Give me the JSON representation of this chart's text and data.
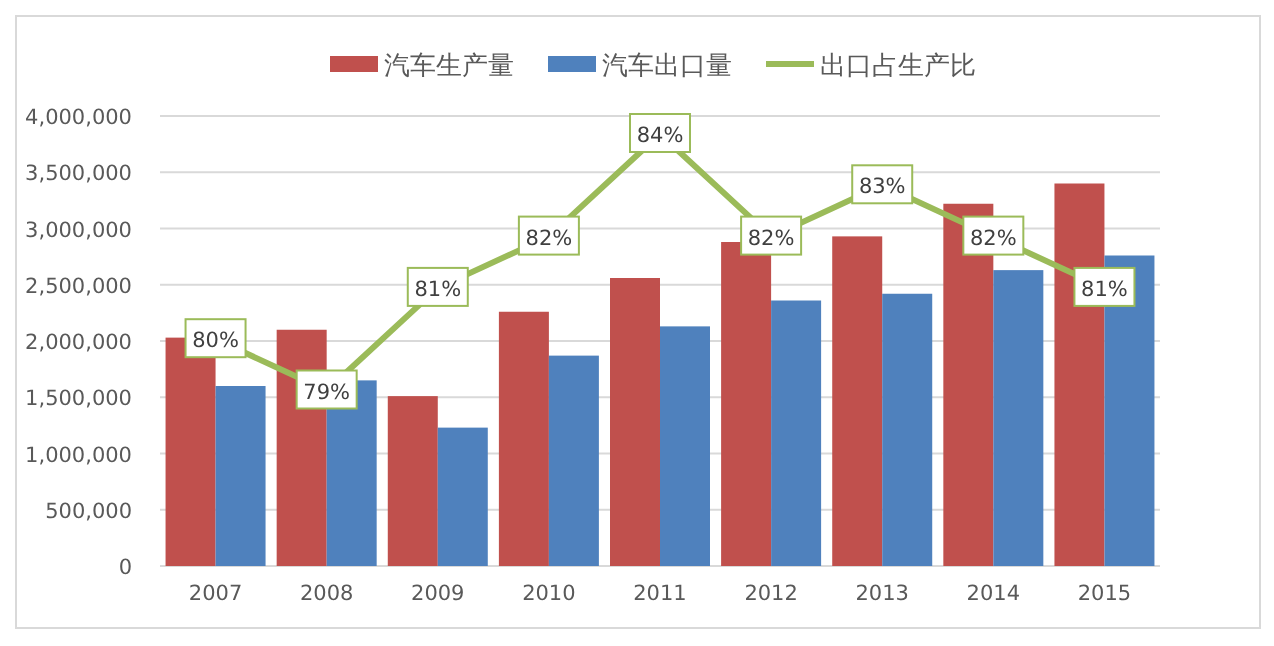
{
  "chart_data": {
    "type": "bar",
    "categories": [
      "2007",
      "2008",
      "2009",
      "2010",
      "2011",
      "2012",
      "2013",
      "2014",
      "2015"
    ],
    "series": [
      {
        "name": "汽车生产量",
        "color": "#c0504d",
        "values": [
          2030000,
          2100000,
          1510000,
          2260000,
          2560000,
          2880000,
          2930000,
          3220000,
          3400000
        ]
      },
      {
        "name": "汽车出口量",
        "color": "#4f81bd",
        "values": [
          1600000,
          1650000,
          1230000,
          1870000,
          2130000,
          2360000,
          2420000,
          2630000,
          2760000
        ]
      },
      {
        "name": "出口占生产比",
        "color": "#9bbb59",
        "type": "line",
        "axis": "y2",
        "marker": "square",
        "values": [
          80,
          79,
          81,
          82,
          84,
          82,
          83,
          82,
          81
        ],
        "value_labels": [
          "80%",
          "79%",
          "81%",
          "82%",
          "84%",
          "82%",
          "83%",
          "82%",
          "81%"
        ]
      }
    ],
    "ylim": [
      0,
      4000000
    ],
    "yticks": [
      {
        "value": 0,
        "label": "0"
      },
      {
        "value": 500000,
        "label": "500,000"
      },
      {
        "value": 1000000,
        "label": "1,000,000"
      },
      {
        "value": 1500000,
        "label": "1,500,000"
      },
      {
        "value": 2000000,
        "label": "2,000,000"
      },
      {
        "value": 2500000,
        "label": "2,500,000"
      },
      {
        "value": 3000000,
        "label": "3,000,000"
      },
      {
        "value": 3500000,
        "label": "3,500,000"
      },
      {
        "value": 4000000,
        "label": "4,000,000"
      }
    ],
    "grid": "y",
    "legend": "top"
  }
}
